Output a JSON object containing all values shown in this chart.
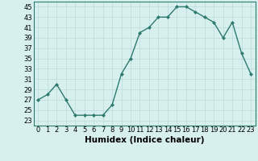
{
  "x": [
    0,
    1,
    2,
    3,
    4,
    5,
    6,
    7,
    8,
    9,
    10,
    11,
    12,
    13,
    14,
    15,
    16,
    17,
    18,
    19,
    20,
    21,
    22,
    23
  ],
  "y": [
    27,
    28,
    30,
    27,
    24,
    24,
    24,
    24,
    26,
    32,
    35,
    40,
    41,
    43,
    43,
    45,
    45,
    44,
    43,
    42,
    39,
    42,
    36,
    32
  ],
  "xlabel": "Humidex (Indice chaleur)",
  "ylim": [
    22,
    46
  ],
  "xlim": [
    -0.5,
    23.5
  ],
  "yticks": [
    23,
    25,
    27,
    29,
    31,
    33,
    35,
    37,
    39,
    41,
    43,
    45
  ],
  "xticks": [
    0,
    1,
    2,
    3,
    4,
    5,
    6,
    7,
    8,
    9,
    10,
    11,
    12,
    13,
    14,
    15,
    16,
    17,
    18,
    19,
    20,
    21,
    22,
    23
  ],
  "line_color": "#2d7a6e",
  "marker": "D",
  "marker_size": 2.0,
  "bg_color": "#d7f0ee",
  "grid_color": "#c0dede",
  "tick_fontsize": 6.0,
  "xlabel_fontsize": 7.5,
  "linewidth": 1.0
}
